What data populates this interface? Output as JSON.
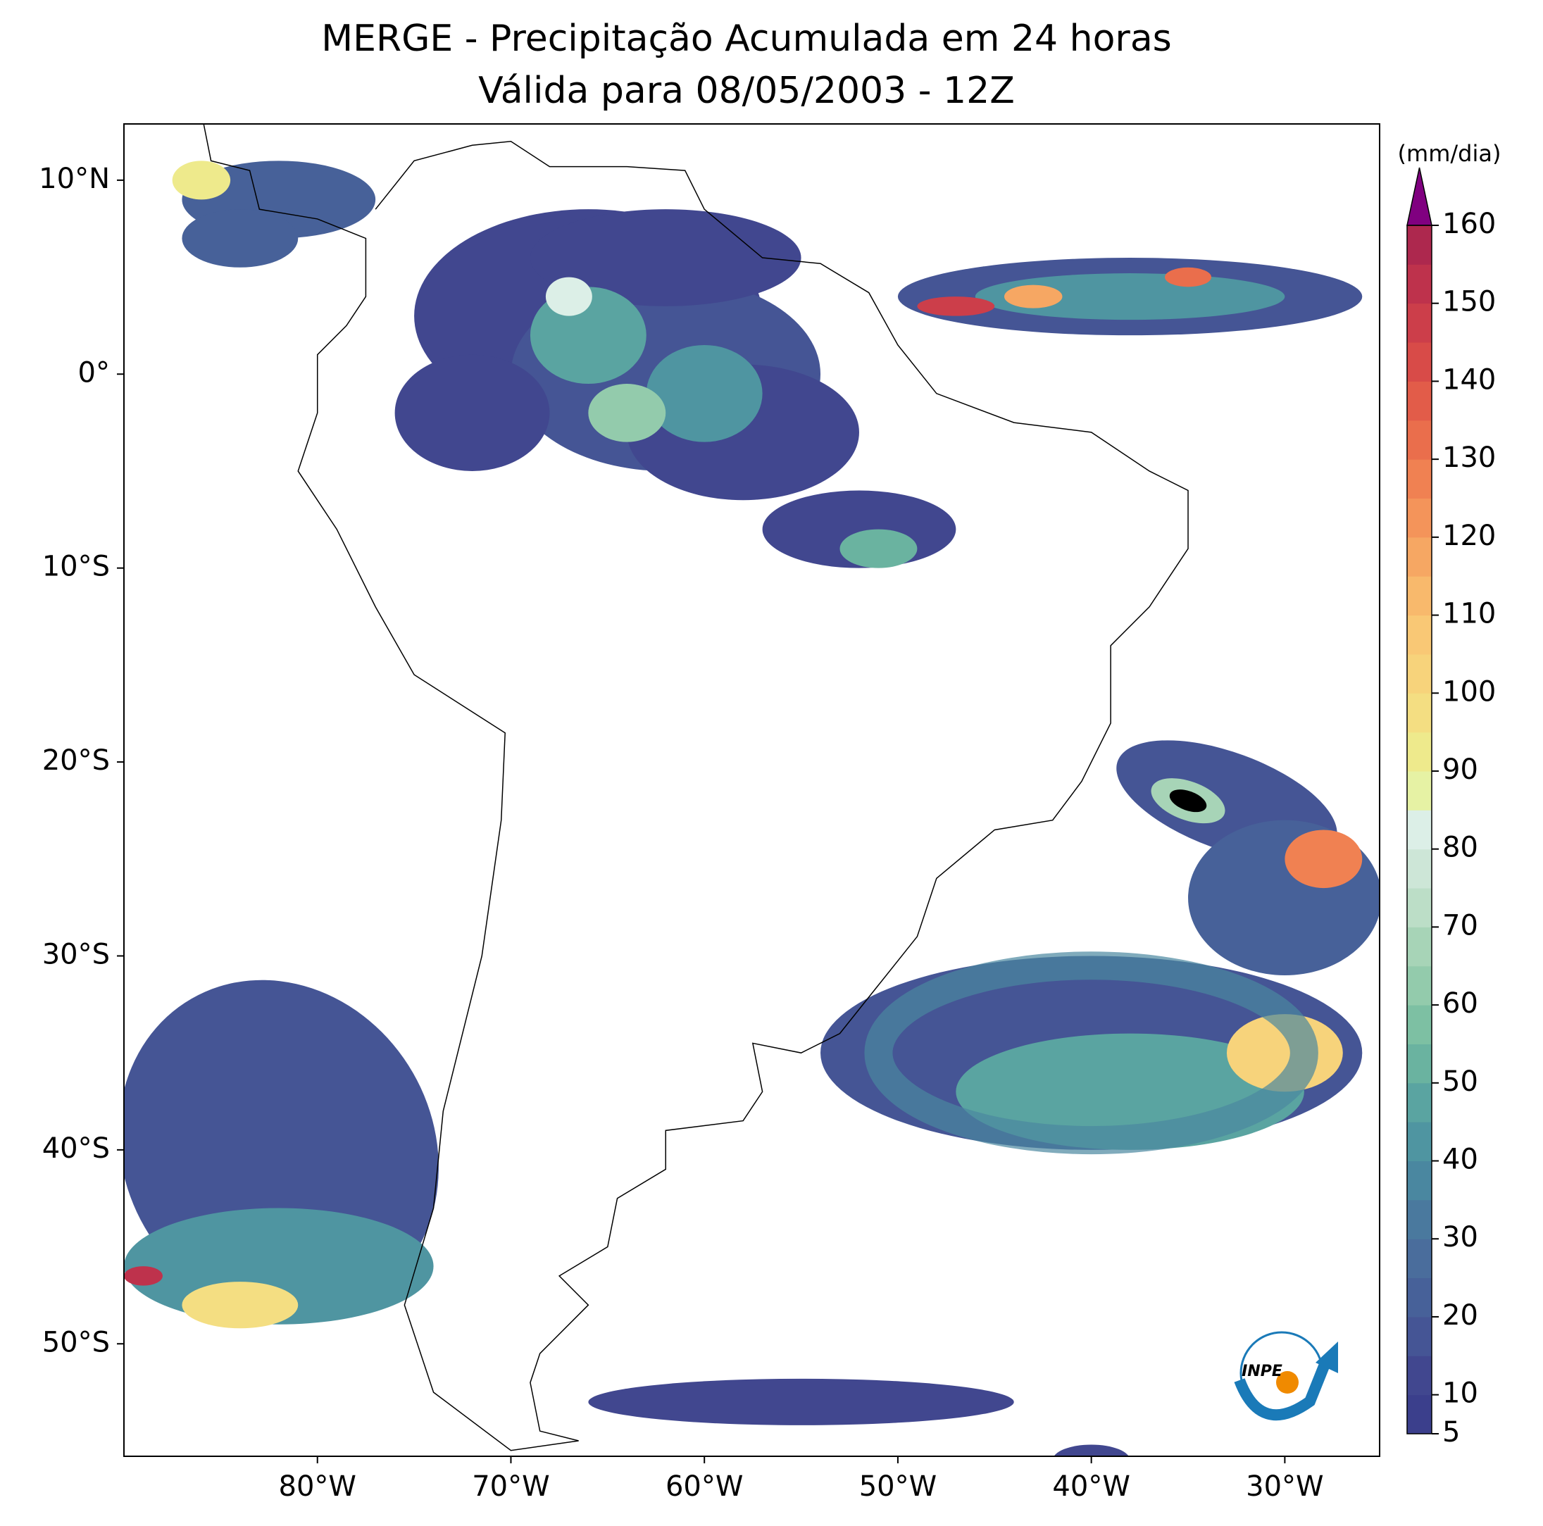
{
  "title": [
    "MERGE - Precipitação Acumulada em 24 horas",
    "Válida para 08/05/2003 - 12Z"
  ],
  "map": {
    "xlim": [
      -90,
      -25.1
    ],
    "ylim": [
      -55.8,
      12.9
    ],
    "xticks": [
      {
        "value": -80,
        "label": "80°W"
      },
      {
        "value": -70,
        "label": "70°W"
      },
      {
        "value": -60,
        "label": "60°W"
      },
      {
        "value": -50,
        "label": "50°W"
      },
      {
        "value": -40,
        "label": "40°W"
      },
      {
        "value": -30,
        "label": "30°W"
      }
    ],
    "yticks": [
      {
        "value": 10,
        "label": "10°N"
      },
      {
        "value": 0,
        "label": "0°"
      },
      {
        "value": -10,
        "label": "10°S"
      },
      {
        "value": -20,
        "label": "20°S"
      },
      {
        "value": -30,
        "label": "30°S"
      },
      {
        "value": -40,
        "label": "40°S"
      },
      {
        "value": -50,
        "label": "50°S"
      }
    ]
  },
  "colorbar": {
    "unit": "(mm/dia)",
    "lim": [
      5,
      160
    ],
    "ticks": [
      5,
      10,
      20,
      30,
      40,
      50,
      60,
      70,
      80,
      90,
      100,
      110,
      120,
      130,
      140,
      150,
      160
    ],
    "colors": [
      "#3b3f8c",
      "#41478f",
      "#455595",
      "#476199",
      "#4a6d9c",
      "#4a799e",
      "#4a87a0",
      "#4f95a1",
      "#5aa4a1",
      "#6ab3a0",
      "#7dc0a3",
      "#93cbac",
      "#a7d4b7",
      "#bcdec7",
      "#cde6d7",
      "#dcefe7",
      "#e6f2a4",
      "#eeea8c",
      "#f4de82",
      "#f7d37b",
      "#f9c875",
      "#f8b96c",
      "#f6a763",
      "#f4945a",
      "#f08152",
      "#ea6e4c",
      "#e25c49",
      "#d84b48",
      "#cc3e4a",
      "#be324c",
      "#ad284e"
    ],
    "extend_color": "#800080"
  },
  "logo": "INPE"
}
